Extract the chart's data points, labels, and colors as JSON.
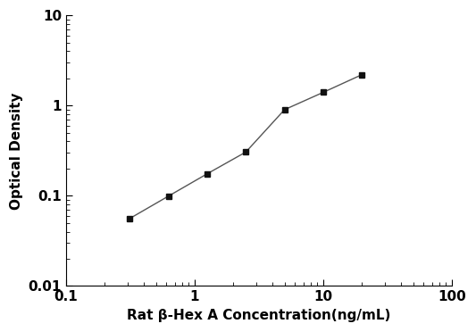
{
  "x": [
    0.313,
    0.625,
    1.25,
    2.5,
    5,
    10,
    20
  ],
  "y": [
    0.056,
    0.099,
    0.175,
    0.305,
    0.9,
    1.4,
    2.2
  ],
  "xlabel": "Rat β-Hex A Concentration(ng/mL)",
  "ylabel": "Optical Density",
  "xlim": [
    0.1,
    100
  ],
  "ylim": [
    0.01,
    10
  ],
  "line_color": "#555555",
  "marker": "s",
  "marker_color": "#111111",
  "marker_size": 5,
  "linewidth": 1.0,
  "background_color": "#ffffff",
  "xtick_labels": [
    "0.1",
    "1",
    "10",
    "100"
  ],
  "xtick_vals": [
    0.1,
    1,
    10,
    100
  ],
  "ytick_labels": [
    "0.01",
    "0.1",
    "1",
    "10"
  ],
  "ytick_vals": [
    0.01,
    0.1,
    1,
    10
  ],
  "xlabel_fontsize": 11,
  "ylabel_fontsize": 11,
  "tick_fontsize": 11,
  "font_weight": "bold"
}
